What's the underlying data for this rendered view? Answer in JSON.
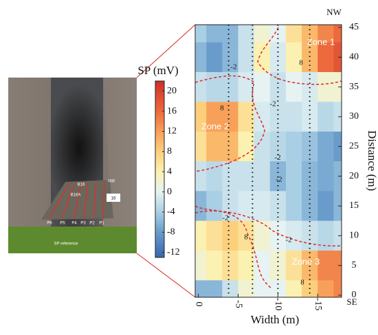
{
  "chart_data": {
    "type": "heatmap",
    "x_label": "Width (m)",
    "y_label": "Distance (m)",
    "top_label": "NW",
    "bottom_label": "SE",
    "x": [
      0,
      -2,
      -4,
      -6,
      -8,
      -10,
      -12,
      -14,
      -16,
      -18
    ],
    "y": [
      45,
      40,
      35,
      30,
      25,
      20,
      15,
      10,
      5,
      0
    ],
    "values": [
      [
        -4,
        -6,
        -6,
        -2,
        2,
        0,
        6,
        10,
        14,
        16
      ],
      [
        -6,
        -8,
        -6,
        -2,
        4,
        -1,
        4,
        10,
        16,
        18
      ],
      [
        -2,
        -3,
        -3,
        -1,
        0,
        -2,
        0,
        -1,
        2,
        2
      ],
      [
        8,
        12,
        12,
        6,
        -1,
        -2,
        -2,
        -1,
        -3,
        -2
      ],
      [
        6,
        10,
        10,
        4,
        -2,
        -3,
        -4,
        -5,
        -7,
        -8
      ],
      [
        -2,
        -3,
        -2,
        -2,
        -2,
        -6,
        -4,
        -6,
        -7,
        -6
      ],
      [
        -6,
        -4,
        -2,
        -1,
        -1,
        -2,
        -4,
        -6,
        -8,
        -6
      ],
      [
        4,
        6,
        8,
        6,
        2,
        0,
        -1,
        -2,
        -3,
        -2
      ],
      [
        2,
        4,
        6,
        4,
        0,
        2,
        6,
        10,
        14,
        14
      ],
      [
        -6,
        -6,
        -2,
        2,
        0,
        0,
        4,
        8,
        12,
        14
      ]
    ],
    "xlim": [
      0.4,
      -18
    ],
    "xticks": [
      0,
      -5,
      -10,
      -15
    ],
    "ylim": [
      0,
      45
    ],
    "yticks": [
      0,
      5,
      10,
      15,
      20,
      25,
      30,
      35,
      40,
      45
    ],
    "profile_lines_x": [
      -3.8,
      -6.8,
      -10,
      -14
    ],
    "annotations": [
      "Zone 1",
      "Zone 2",
      "Zone 3"
    ],
    "contour_labels": [
      "-2",
      "8",
      "-2",
      "8",
      "-2",
      "-2",
      "-2",
      "8",
      "-2",
      "8"
    ],
    "colorbar": {
      "label": "SP (mV)",
      "clim": [
        -13,
        22
      ],
      "ticks": [
        -12,
        -8,
        -4,
        0,
        4,
        8,
        12,
        16,
        20
      ],
      "stops": [
        -13,
        -8,
        -4,
        0,
        4,
        8,
        12,
        16,
        22
      ],
      "colors": [
        "#3568ad",
        "#6a9ccb",
        "#a9cfe4",
        "#e6f3f2",
        "#fbf1b0",
        "#fccf7d",
        "#f8a059",
        "#ec6a3d",
        "#cf2d27"
      ]
    }
  },
  "photo": {
    "labels": [
      "NW",
      "16",
      "P6",
      "P5",
      "P4",
      "P3",
      "P2",
      "P1",
      "SP reference",
      "B16",
      "B16A"
    ]
  }
}
